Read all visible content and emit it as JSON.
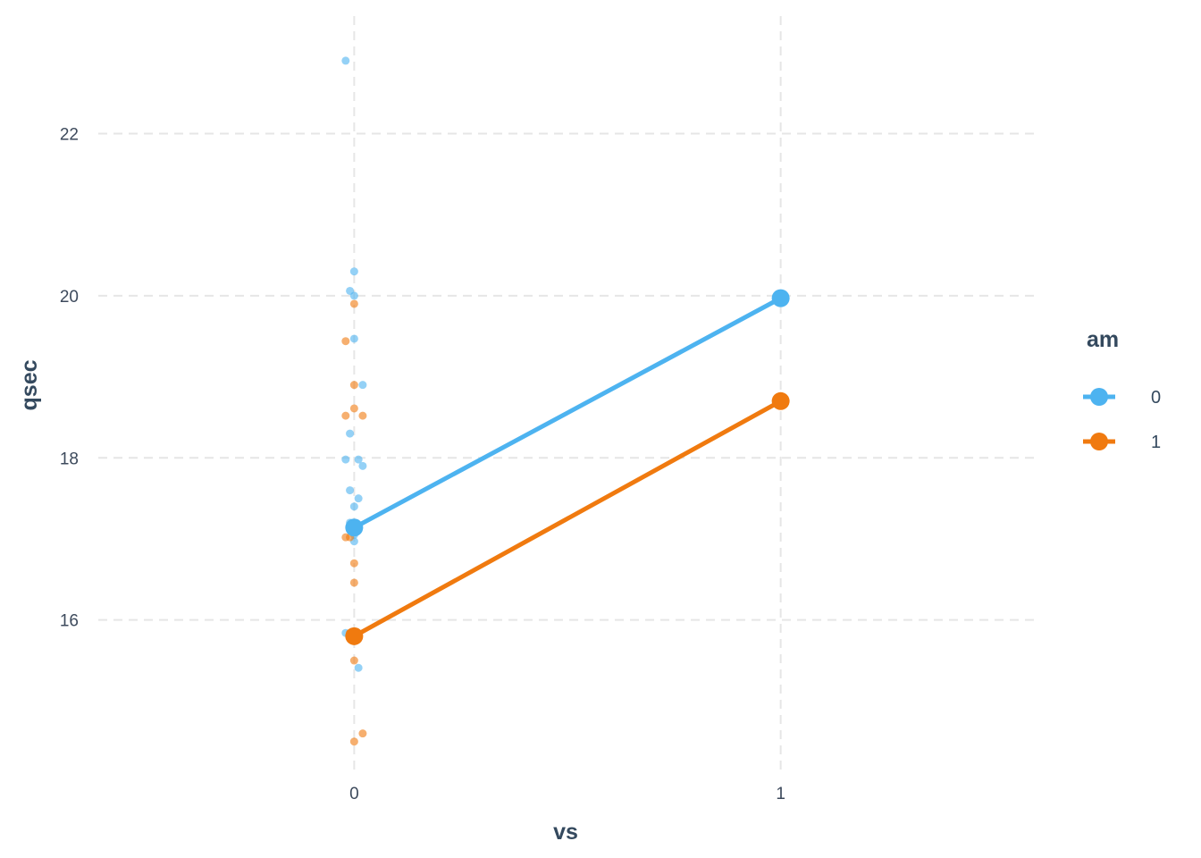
{
  "chart_data": {
    "type": "line",
    "xlabel": "vs",
    "ylabel": "qsec",
    "x_categories": [
      "0",
      "1"
    ],
    "yticks": [
      16,
      18,
      20,
      22
    ],
    "xlim": [
      -0.6,
      1.6
    ],
    "ylim": [
      14.1,
      23.45
    ],
    "grid": true,
    "legend": {
      "title": "am",
      "placement": "right"
    },
    "series": [
      {
        "name": "0",
        "color": "#4db3f0",
        "means": [
          {
            "x": 0,
            "y": 17.14
          },
          {
            "x": 1,
            "y": 19.97
          }
        ],
        "points": [
          {
            "x": -0.02,
            "y": 17.98
          },
          {
            "x": 0.01,
            "y": 17.98
          },
          {
            "x": 0.02,
            "y": 17.9
          },
          {
            "x": -0.01,
            "y": 17.6
          },
          {
            "x": 0.01,
            "y": 17.5
          },
          {
            "x": 0.0,
            "y": 17.4
          },
          {
            "x": -0.01,
            "y": 17.2
          },
          {
            "x": 0.0,
            "y": 17.05
          },
          {
            "x": 0.0,
            "y": 16.97
          },
          {
            "x": -0.02,
            "y": 15.84
          },
          {
            "x": 0.01,
            "y": 15.41
          },
          {
            "x": -0.02,
            "y": 22.9
          },
          {
            "x": 0.0,
            "y": 20.3
          },
          {
            "x": -0.01,
            "y": 20.06
          },
          {
            "x": 0.0,
            "y": 20.0
          },
          {
            "x": 0.0,
            "y": 19.47
          },
          {
            "x": 0.02,
            "y": 18.9
          },
          {
            "x": -0.01,
            "y": 18.3
          }
        ]
      },
      {
        "name": "1",
        "color": "#f07a0f",
        "means": [
          {
            "x": 0,
            "y": 15.8
          },
          {
            "x": 1,
            "y": 18.7
          }
        ],
        "points": [
          {
            "x": -0.02,
            "y": 17.02
          },
          {
            "x": 0.0,
            "y": 16.7
          },
          {
            "x": 0.0,
            "y": 16.46
          },
          {
            "x": 0.0,
            "y": 15.5
          },
          {
            "x": 0.02,
            "y": 14.6
          },
          {
            "x": 0.0,
            "y": 14.5
          },
          {
            "x": -0.01,
            "y": 15.84
          },
          {
            "x": -0.02,
            "y": 19.44
          },
          {
            "x": 0.0,
            "y": 18.9
          },
          {
            "x": 0.0,
            "y": 18.61
          },
          {
            "x": -0.02,
            "y": 18.52
          },
          {
            "x": 0.02,
            "y": 18.52
          },
          {
            "x": -0.01,
            "y": 17.02
          },
          {
            "x": 0.0,
            "y": 19.9
          }
        ]
      }
    ]
  }
}
